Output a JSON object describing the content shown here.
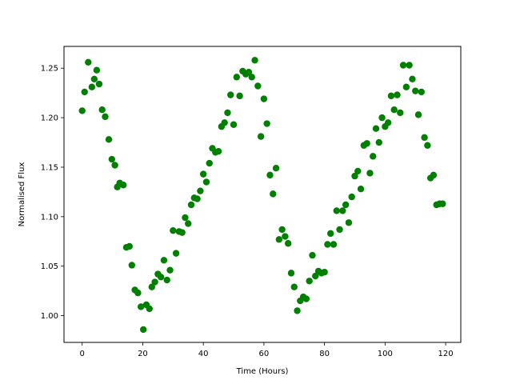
{
  "chart_data": {
    "type": "scatter",
    "title": "",
    "xlabel": "Time (Hours)",
    "ylabel": "Normalised Flux",
    "xlim": [
      -6,
      125
    ],
    "ylim": [
      0.973,
      1.272
    ],
    "xticks": [
      0,
      20,
      40,
      60,
      80,
      100,
      120
    ],
    "xtick_labels": [
      "0",
      "20",
      "40",
      "60",
      "80",
      "100",
      "120"
    ],
    "yticks": [
      1.0,
      1.05,
      1.1,
      1.15,
      1.2,
      1.25
    ],
    "ytick_labels": [
      "1.00",
      "1.05",
      "1.10",
      "1.15",
      "1.20",
      "1.25"
    ],
    "grid": false,
    "marker_color": "#008000",
    "series": [
      {
        "name": "",
        "x": [
          0.0,
          0.8,
          2.0,
          3.2,
          4.0,
          4.8,
          5.6,
          6.6,
          7.6,
          8.8,
          9.8,
          10.8,
          11.6,
          12.4,
          13.6,
          14.6,
          15.6,
          16.4,
          17.4,
          18.4,
          19.4,
          20.2,
          21.2,
          22.2,
          23.0,
          24.0,
          25.0,
          26.0,
          27.0,
          28.0,
          29.0,
          30.0,
          31.0,
          32.0,
          33.0,
          34.0,
          35.0,
          36.0,
          37.0,
          38.0,
          39.0,
          40.0,
          41.0,
          42.0,
          43.0,
          44.0,
          45.0,
          46.0,
          47.0,
          48.0,
          49.0,
          50.0,
          51.0,
          52.0,
          53.0,
          54.0,
          55.0,
          56.0,
          57.0,
          58.0,
          59.0,
          60.0,
          61.0,
          62.0,
          63.0,
          64.0,
          65.0,
          66.0,
          67.0,
          68.0,
          69.0,
          70.0,
          71.0,
          72.0,
          73.0,
          74.0,
          75.0,
          76.0,
          77.0,
          78.0,
          79.0,
          80.0,
          81.0,
          82.0,
          83.0,
          84.0,
          85.0,
          86.0,
          87.0,
          88.0,
          89.0,
          90.0,
          91.0,
          92.0,
          93.0,
          94.0,
          95.0,
          96.0,
          97.0,
          98.0,
          99.0,
          100.0,
          101.0,
          102.0,
          103.0,
          104.0,
          105.0,
          106.0,
          107.0,
          108.0,
          109.0,
          110.0,
          111.0,
          112.0,
          113.0,
          114.0,
          115.0,
          116.0,
          117.0,
          118.0,
          119.0
        ],
        "y": [
          1.207,
          1.226,
          1.256,
          1.231,
          1.239,
          1.248,
          1.234,
          1.208,
          1.201,
          1.178,
          1.158,
          1.152,
          1.13,
          1.134,
          1.132,
          1.069,
          1.07,
          1.051,
          1.026,
          1.023,
          1.009,
          0.986,
          1.011,
          1.007,
          1.029,
          1.034,
          1.042,
          1.039,
          1.056,
          1.036,
          1.046,
          1.086,
          1.063,
          1.085,
          1.084,
          1.099,
          1.093,
          1.112,
          1.119,
          1.118,
          1.126,
          1.143,
          1.135,
          1.154,
          1.169,
          1.165,
          1.166,
          1.191,
          1.195,
          1.205,
          1.223,
          1.193,
          1.241,
          1.222,
          1.247,
          1.244,
          1.246,
          1.241,
          1.258,
          1.232,
          1.181,
          1.219,
          1.194,
          1.142,
          1.123,
          1.149,
          1.077,
          1.087,
          1.08,
          1.073,
          1.043,
          1.029,
          1.005,
          1.015,
          1.019,
          1.017,
          1.035,
          1.061,
          1.04,
          1.045,
          1.043,
          1.044,
          1.072,
          1.083,
          1.072,
          1.106,
          1.087,
          1.106,
          1.112,
          1.094,
          1.12,
          1.141,
          1.146,
          1.128,
          1.172,
          1.174,
          1.144,
          1.161,
          1.189,
          1.175,
          1.2,
          1.191,
          1.195,
          1.222,
          1.208,
          1.223,
          1.205,
          1.253,
          1.231,
          1.253,
          1.239,
          1.227,
          1.203,
          1.226,
          1.18,
          1.172,
          1.139,
          1.142,
          1.112,
          1.113,
          1.113
        ]
      }
    ]
  }
}
